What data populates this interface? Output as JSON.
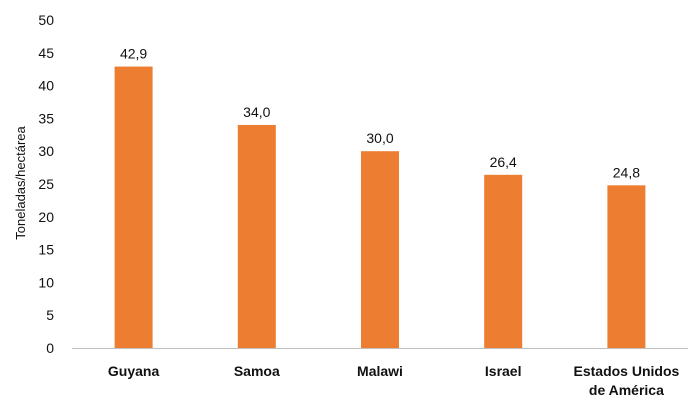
{
  "chart_data": {
    "type": "bar",
    "categories": [
      "Guyana",
      "Samoa",
      "Malawi",
      "Israel",
      "Estados Unidos de América"
    ],
    "category_lines": [
      [
        "Guyana"
      ],
      [
        "Samoa"
      ],
      [
        "Malawi"
      ],
      [
        "Israel"
      ],
      [
        "Estados Unidos",
        "de América"
      ]
    ],
    "values": [
      42.9,
      34.0,
      30.0,
      26.4,
      24.8
    ],
    "value_labels": [
      "42,9",
      "34,0",
      "30,0",
      "26,4",
      "24,8"
    ],
    "title": "",
    "xlabel": "",
    "ylabel": "Toneladas/hectárea",
    "ylim": [
      0,
      50
    ],
    "yticks": [
      0,
      5,
      10,
      15,
      20,
      25,
      30,
      35,
      40,
      45,
      50
    ],
    "grid": false,
    "legend": "none",
    "bar_color": "#ED7D31",
    "axis_color": "#BFBFBF"
  }
}
